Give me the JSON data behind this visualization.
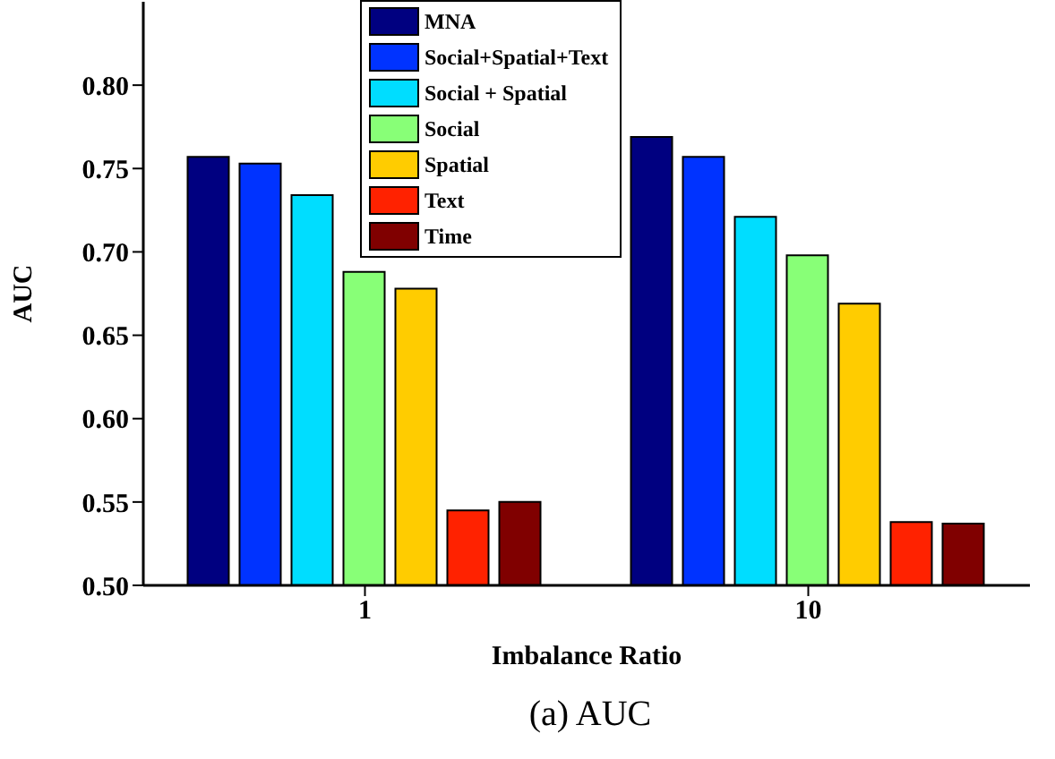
{
  "chart_data": {
    "type": "bar",
    "xlabel": "Imbalance Ratio",
    "ylabel": "AUC",
    "annotations": [
      "(a) AUC"
    ],
    "categories": [
      "1",
      "10"
    ],
    "series": [
      {
        "name": "MNA",
        "color": "#000080",
        "values": [
          0.757,
          0.769
        ]
      },
      {
        "name": "Social+Spatial+Text",
        "color": "#0033ff",
        "values": [
          0.753,
          0.757
        ]
      },
      {
        "name": "Social + Spatial",
        "color": "#00ddff",
        "values": [
          0.734,
          0.721
        ]
      },
      {
        "name": "Social",
        "color": "#88ff77",
        "values": [
          0.688,
          0.698
        ]
      },
      {
        "name": "Spatial",
        "color": "#ffcc00",
        "values": [
          0.678,
          0.669
        ]
      },
      {
        "name": "Text",
        "color": "#ff2200",
        "values": [
          0.545,
          0.538
        ]
      },
      {
        "name": "Time",
        "color": "#800000",
        "values": [
          0.55,
          0.537
        ]
      }
    ],
    "ylim": [
      0.5,
      0.85
    ],
    "yticks": [
      {
        "value": 0.5,
        "label": "0.50"
      },
      0.55,
      {
        "value": 0.6,
        "label": "0.60"
      },
      0.65,
      {
        "value": 0.7,
        "label": "0.70"
      },
      0.75,
      {
        "value": 0.8,
        "label": "0.80"
      }
    ],
    "grid": false,
    "legend": "top"
  }
}
